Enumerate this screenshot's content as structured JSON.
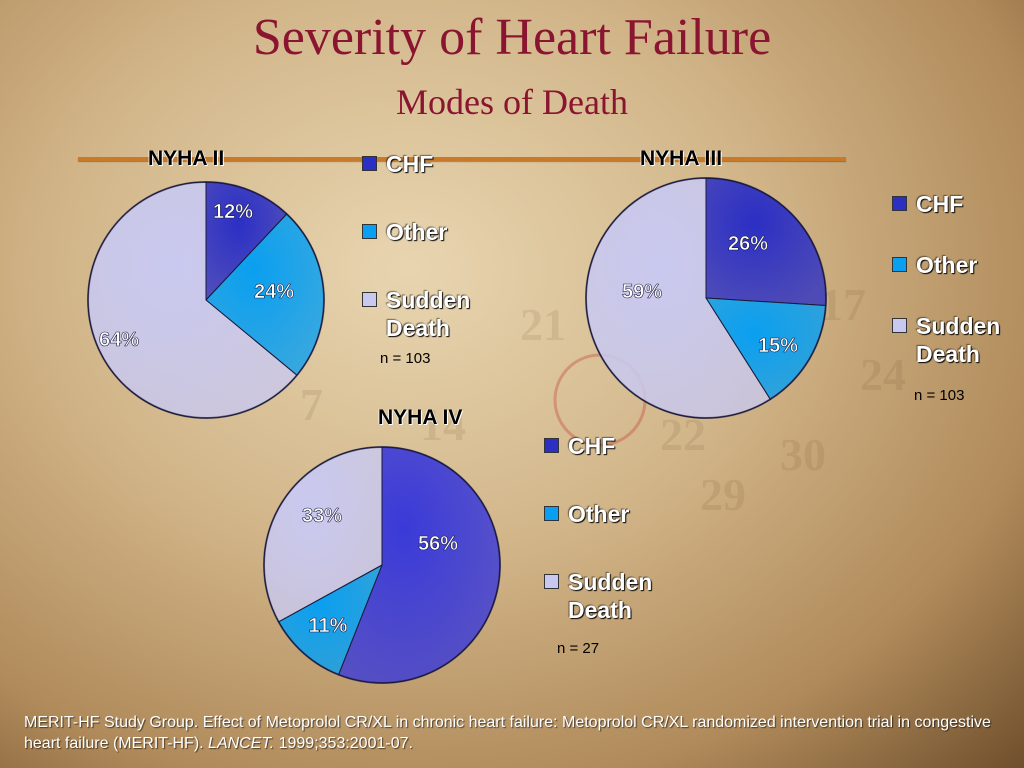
{
  "slide": {
    "title": "Severity of Heart Failure",
    "subtitle": "Modes of Death"
  },
  "chart_data": [
    {
      "type": "pie",
      "title": "NYHA II",
      "categories": [
        "CHF",
        "Other",
        "Sudden Death"
      ],
      "values": [
        12,
        24,
        64
      ],
      "value_labels": [
        "12%",
        "24%",
        "64%"
      ],
      "colors": [
        "#2b2fc4",
        "#0a9ff0",
        "#c9c9f0"
      ],
      "legend": [
        "CHF",
        "Other",
        "Sudden",
        "Death"
      ],
      "note": "n = 103"
    },
    {
      "type": "pie",
      "title": "NYHA III",
      "categories": [
        "CHF",
        "Other",
        "Sudden Death"
      ],
      "values": [
        26,
        15,
        59
      ],
      "value_labels": [
        "26%",
        "15%",
        "59%"
      ],
      "colors": [
        "#2b2fc4",
        "#0a9ff0",
        "#c9c9f0"
      ],
      "legend": [
        "CHF",
        "Other",
        "Sudden",
        "Death"
      ],
      "note": "n = 103"
    },
    {
      "type": "pie",
      "title": "NYHA IV",
      "categories": [
        "CHF",
        "Other",
        "Sudden Death"
      ],
      "values": [
        56,
        11,
        33
      ],
      "value_labels": [
        "56%",
        "11%",
        "33%"
      ],
      "colors": [
        "#3a3ad8",
        "#0a9ff0",
        "#c9c9f0"
      ],
      "legend": [
        "CHF",
        "Other",
        "Sudden",
        "Death"
      ],
      "note": "n = 27"
    }
  ],
  "citation": {
    "text1": "MERIT-HF Study Group.  Effect of Metoprolol CR/XL in chronic heart failure: Metoprolol CR/XL randomized intervention trial in congestive heart failure (MERIT-HF).",
    "journal": "LANCET.",
    "text2": " 1999;353:2001-07."
  }
}
